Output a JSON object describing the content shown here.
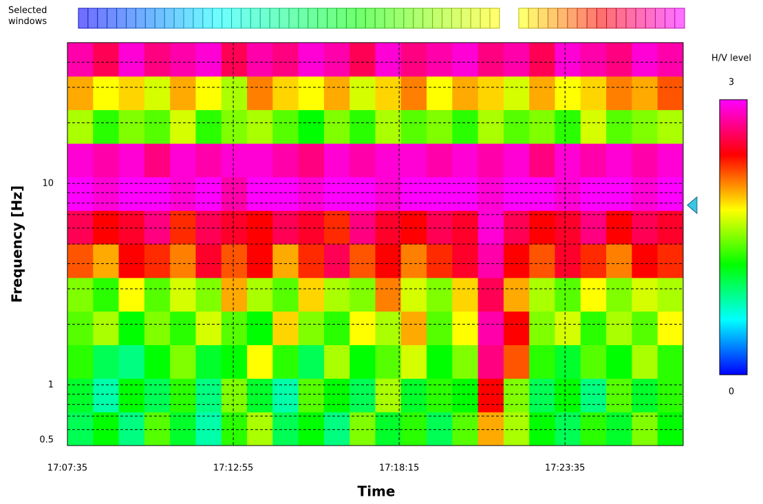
{
  "chart_data": {
    "type": "heatmap",
    "selected_windows_label": "Selected windows",
    "x_label": "Time",
    "y_label": "Frequency [Hz]",
    "colorbar_label": "H/V level",
    "xlim": [
      "17:07:35",
      "17:27:23"
    ],
    "xticks": [
      "17:07:35",
      "17:12:55",
      "17:18:15",
      "17:23:35"
    ],
    "ylim": [
      0.5,
      50
    ],
    "y_log": true,
    "yticks": [
      0.5,
      1,
      10
    ],
    "yminor_ticks": [
      0.6,
      0.7,
      0.8,
      0.9,
      2,
      3,
      4,
      5,
      6,
      7,
      8,
      9,
      20,
      30,
      40
    ],
    "grid": true,
    "zlim": [
      0,
      3
    ],
    "zticks": [
      0,
      3
    ],
    "peak_frequency": 7.8,
    "z": [
      [
        1.0,
        1.2,
        0.9,
        1.4,
        1.1,
        0.8,
        1.3,
        1.6,
        1.0,
        1.2,
        0.9,
        1.5,
        1.1,
        1.3,
        1.0,
        1.4,
        2.0,
        1.6,
        1.2,
        1.0,
        1.3,
        1.1,
        1.5,
        1.2
      ],
      [
        1.1,
        0.8,
        1.2,
        1.0,
        1.3,
        0.9,
        1.5,
        1.1,
        0.8,
        1.4,
        1.2,
        1.0,
        1.6,
        1.1,
        1.3,
        1.2,
        2.4,
        1.5,
        1.0,
        1.2,
        0.9,
        1.4,
        1.1,
        1.3
      ],
      [
        1.3,
        1.0,
        0.9,
        1.2,
        1.5,
        1.1,
        1.2,
        1.8,
        1.3,
        1.0,
        1.6,
        1.2,
        1.4,
        1.7,
        1.2,
        1.5,
        2.7,
        2.2,
        1.3,
        1.1,
        1.4,
        1.2,
        1.6,
        1.3
      ],
      [
        1.4,
        1.6,
        1.2,
        1.5,
        1.3,
        1.7,
        1.4,
        1.2,
        1.9,
        1.5,
        1.3,
        1.8,
        1.6,
        2.0,
        1.4,
        1.8,
        2.8,
        2.4,
        1.5,
        1.7,
        1.3,
        1.6,
        1.4,
        1.8
      ],
      [
        1.5,
        1.3,
        1.8,
        1.4,
        1.7,
        1.5,
        2.0,
        1.6,
        1.4,
        1.9,
        1.6,
        1.5,
        2.1,
        1.7,
        1.5,
        1.9,
        2.6,
        2.0,
        1.6,
        1.4,
        1.8,
        1.5,
        1.7,
        1.6
      ],
      [
        2.2,
        2.0,
        2.4,
        2.3,
        2.1,
        2.5,
        2.2,
        2.4,
        2.0,
        2.3,
        2.6,
        2.2,
        2.4,
        2.1,
        2.3,
        2.5,
        2.8,
        2.4,
        2.2,
        2.5,
        2.3,
        2.1,
        2.4,
        2.3
      ],
      [
        2.6,
        2.4,
        2.5,
        2.7,
        2.3,
        2.6,
        2.5,
        2.4,
        2.6,
        2.5,
        2.3,
        2.7,
        2.5,
        2.4,
        2.6,
        2.5,
        2.9,
        2.6,
        2.4,
        2.5,
        2.7,
        2.4,
        2.6,
        2.5
      ],
      [
        3.0,
        2.9,
        3.0,
        3.0,
        2.9,
        3.0,
        2.8,
        3.0,
        3.0,
        2.9,
        3.0,
        3.0,
        2.9,
        3.0,
        3.0,
        3.0,
        2.9,
        3.0,
        3.0,
        2.9,
        3.0,
        3.0,
        2.9,
        3.0
      ],
      [
        2.9,
        2.8,
        2.9,
        2.7,
        2.9,
        2.8,
        2.9,
        2.9,
        2.8,
        2.7,
        2.9,
        2.8,
        2.9,
        2.9,
        2.8,
        2.9,
        2.8,
        2.9,
        2.7,
        2.9,
        2.8,
        2.9,
        2.8,
        2.9
      ],
      [
        1.6,
        1.3,
        1.5,
        1.4,
        1.7,
        1.3,
        1.5,
        1.6,
        1.4,
        1.2,
        1.5,
        1.3,
        1.6,
        1.4,
        1.5,
        1.3,
        1.6,
        1.4,
        1.5,
        1.3,
        1.7,
        1.4,
        1.5,
        1.6
      ],
      [
        2.0,
        1.8,
        1.9,
        1.7,
        2.0,
        1.8,
        1.6,
        2.1,
        1.9,
        1.8,
        2.0,
        1.7,
        1.9,
        2.1,
        1.8,
        2.0,
        1.9,
        1.7,
        2.0,
        1.8,
        1.9,
        2.1,
        2.0,
        2.2
      ],
      [
        2.8,
        2.6,
        2.9,
        2.7,
        2.8,
        2.9,
        2.6,
        2.8,
        2.7,
        2.9,
        2.8,
        2.6,
        2.9,
        2.7,
        2.8,
        2.9,
        2.7,
        2.8,
        2.6,
        2.9,
        2.8,
        2.7,
        2.9,
        2.8
      ]
    ]
  }
}
